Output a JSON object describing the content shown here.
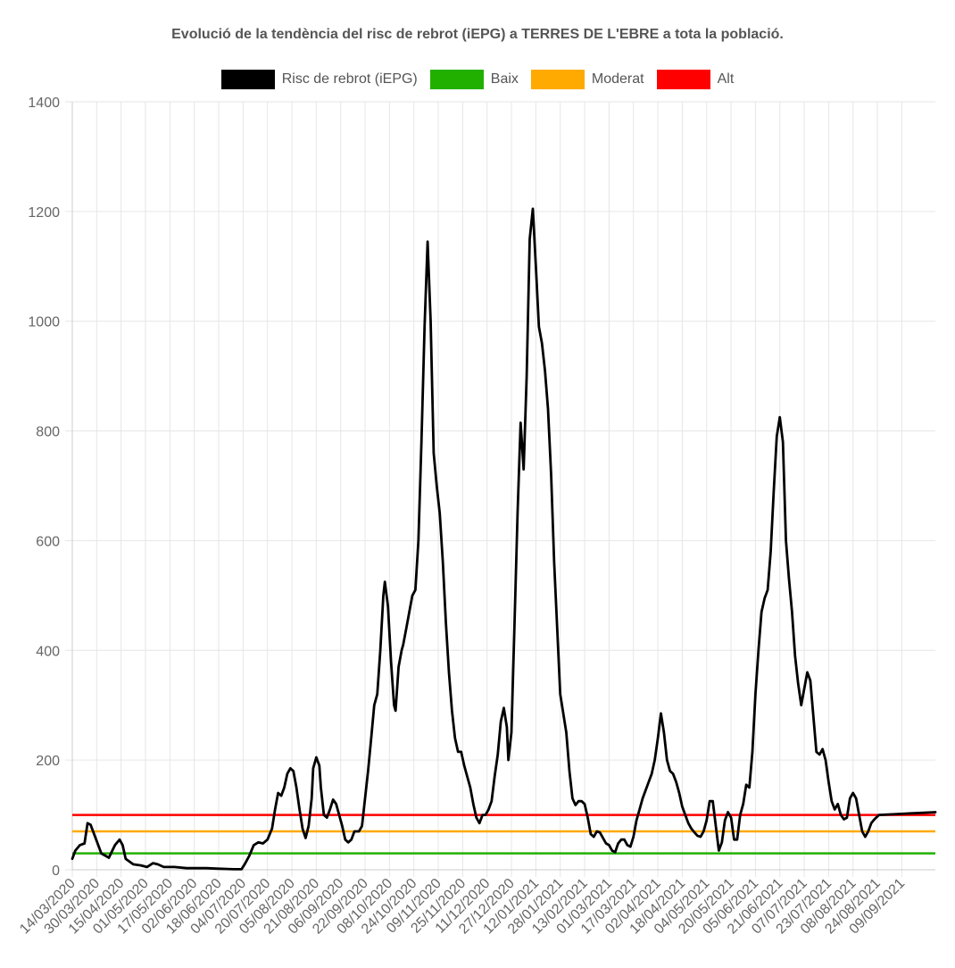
{
  "chart_data": {
    "type": "line",
    "title": "Evolució de la tendència del risc de rebrot (iEPG) a TERRES DE L'EBRE a tota la població.",
    "xlabel": "",
    "ylabel": "",
    "ylim": [
      0,
      1400
    ],
    "yticks": [
      0,
      200,
      400,
      600,
      800,
      1000,
      1200,
      1400
    ],
    "x_start": "14/03/2020",
    "x_end": "01/10/2021",
    "xtick_labels": [
      "14/03/2020",
      "30/03/2020",
      "15/04/2020",
      "01/05/2020",
      "17/05/2020",
      "02/06/2020",
      "18/06/2020",
      "04/07/2020",
      "20/07/2020",
      "05/08/2020",
      "21/08/2020",
      "06/09/2020",
      "22/09/2020",
      "08/10/2020",
      "24/10/2020",
      "09/11/2020",
      "25/11/2020",
      "11/12/2020",
      "27/12/2020",
      "12/01/2021",
      "28/01/2021",
      "13/02/2021",
      "01/03/2021",
      "17/03/2021",
      "02/04/2021",
      "18/04/2021",
      "04/05/2021",
      "20/05/2021",
      "05/06/2021",
      "21/06/2021",
      "07/07/2021",
      "23/07/2021",
      "08/08/2021",
      "24/08/2021",
      "09/09/2021"
    ],
    "grid": true,
    "legend_position": "top",
    "series": [
      {
        "name": "Risc de rebrot (iEPG)",
        "color": "#000000",
        "points": [
          [
            "14/03/2020",
            20
          ],
          [
            "16/03/2020",
            35
          ],
          [
            "19/03/2020",
            45
          ],
          [
            "22/03/2020",
            48
          ],
          [
            "24/03/2020",
            85
          ],
          [
            "26/03/2020",
            82
          ],
          [
            "29/03/2020",
            60
          ],
          [
            "02/04/2020",
            30
          ],
          [
            "07/04/2020",
            22
          ],
          [
            "11/04/2020",
            45
          ],
          [
            "14/04/2020",
            55
          ],
          [
            "16/04/2020",
            45
          ],
          [
            "18/04/2020",
            20
          ],
          [
            "23/04/2020",
            10
          ],
          [
            "28/04/2020",
            8
          ],
          [
            "02/05/2020",
            5
          ],
          [
            "06/05/2020",
            12
          ],
          [
            "09/05/2020",
            10
          ],
          [
            "13/05/2020",
            5
          ],
          [
            "20/05/2020",
            5
          ],
          [
            "28/05/2020",
            3
          ],
          [
            "10/06/2020",
            3
          ],
          [
            "18/06/2020",
            2
          ],
          [
            "28/06/2020",
            1
          ],
          [
            "03/07/2020",
            1
          ],
          [
            "05/07/2020",
            10
          ],
          [
            "08/07/2020",
            25
          ],
          [
            "11/07/2020",
            45
          ],
          [
            "14/07/2020",
            50
          ],
          [
            "17/07/2020",
            48
          ],
          [
            "20/07/2020",
            55
          ],
          [
            "23/07/2020",
            75
          ],
          [
            "25/07/2020",
            110
          ],
          [
            "27/07/2020",
            140
          ],
          [
            "29/07/2020",
            135
          ],
          [
            "31/07/2020",
            150
          ],
          [
            "02/08/2020",
            175
          ],
          [
            "04/08/2020",
            185
          ],
          [
            "06/08/2020",
            180
          ],
          [
            "08/08/2020",
            150
          ],
          [
            "10/08/2020",
            110
          ],
          [
            "12/08/2020",
            75
          ],
          [
            "14/08/2020",
            58
          ],
          [
            "16/08/2020",
            80
          ],
          [
            "18/08/2020",
            130
          ],
          [
            "19/08/2020",
            185
          ],
          [
            "21/08/2020",
            205
          ],
          [
            "23/08/2020",
            190
          ],
          [
            "24/08/2020",
            150
          ],
          [
            "26/08/2020",
            100
          ],
          [
            "28/08/2020",
            95
          ],
          [
            "30/08/2020",
            110
          ],
          [
            "01/09/2020",
            128
          ],
          [
            "03/09/2020",
            120
          ],
          [
            "05/09/2020",
            100
          ],
          [
            "07/09/2020",
            80
          ],
          [
            "09/09/2020",
            55
          ],
          [
            "11/09/2020",
            50
          ],
          [
            "13/09/2020",
            55
          ],
          [
            "15/09/2020",
            70
          ],
          [
            "18/09/2020",
            70
          ],
          [
            "20/09/2020",
            80
          ],
          [
            "22/09/2020",
            130
          ],
          [
            "24/09/2020",
            180
          ],
          [
            "26/09/2020",
            240
          ],
          [
            "28/09/2020",
            300
          ],
          [
            "30/09/2020",
            320
          ],
          [
            "02/10/2020",
            400
          ],
          [
            "04/10/2020",
            500
          ],
          [
            "05/10/2020",
            525
          ],
          [
            "07/10/2020",
            480
          ],
          [
            "09/10/2020",
            380
          ],
          [
            "11/10/2020",
            300
          ],
          [
            "12/10/2020",
            290
          ],
          [
            "14/10/2020",
            370
          ],
          [
            "16/10/2020",
            400
          ],
          [
            "17/10/2020",
            410
          ],
          [
            "19/10/2020",
            440
          ],
          [
            "21/10/2020",
            470
          ],
          [
            "23/10/2020",
            500
          ],
          [
            "25/10/2020",
            510
          ],
          [
            "27/10/2020",
            600
          ],
          [
            "29/10/2020",
            780
          ],
          [
            "31/10/2020",
            990
          ],
          [
            "02/11/2020",
            1145
          ],
          [
            "04/11/2020",
            1000
          ],
          [
            "06/11/2020",
            760
          ],
          [
            "08/11/2020",
            700
          ],
          [
            "10/11/2020",
            650
          ],
          [
            "12/11/2020",
            560
          ],
          [
            "14/11/2020",
            450
          ],
          [
            "16/11/2020",
            360
          ],
          [
            "18/11/2020",
            290
          ],
          [
            "20/11/2020",
            240
          ],
          [
            "22/11/2020",
            215
          ],
          [
            "24/11/2020",
            215
          ],
          [
            "26/11/2020",
            190
          ],
          [
            "28/11/2020",
            170
          ],
          [
            "30/11/2020",
            150
          ],
          [
            "02/12/2020",
            120
          ],
          [
            "04/12/2020",
            95
          ],
          [
            "06/12/2020",
            85
          ],
          [
            "08/12/2020",
            100
          ],
          [
            "10/12/2020",
            100
          ],
          [
            "12/12/2020",
            110
          ],
          [
            "14/12/2020",
            125
          ],
          [
            "16/12/2020",
            170
          ],
          [
            "18/12/2020",
            210
          ],
          [
            "20/12/2020",
            270
          ],
          [
            "22/12/2020",
            295
          ],
          [
            "24/12/2020",
            260
          ],
          [
            "25/12/2020",
            200
          ],
          [
            "27/12/2020",
            250
          ],
          [
            "29/12/2020",
            450
          ],
          [
            "31/12/2020",
            650
          ],
          [
            "02/01/2021",
            815
          ],
          [
            "04/01/2021",
            730
          ],
          [
            "06/01/2021",
            900
          ],
          [
            "08/01/2021",
            1150
          ],
          [
            "10/01/2021",
            1205
          ],
          [
            "12/01/2021",
            1100
          ],
          [
            "14/01/2021",
            990
          ],
          [
            "16/01/2021",
            960
          ],
          [
            "18/01/2021",
            910
          ],
          [
            "20/01/2021",
            840
          ],
          [
            "22/01/2021",
            720
          ],
          [
            "24/01/2021",
            560
          ],
          [
            "26/01/2021",
            440
          ],
          [
            "28/01/2021",
            320
          ],
          [
            "30/01/2021",
            285
          ],
          [
            "01/02/2021",
            250
          ],
          [
            "03/02/2021",
            180
          ],
          [
            "05/02/2021",
            130
          ],
          [
            "07/02/2021",
            118
          ],
          [
            "09/02/2021",
            125
          ],
          [
            "11/02/2021",
            125
          ],
          [
            "13/02/2021",
            120
          ],
          [
            "15/02/2021",
            95
          ],
          [
            "17/02/2021",
            65
          ],
          [
            "19/02/2021",
            60
          ],
          [
            "21/02/2021",
            70
          ],
          [
            "23/02/2021",
            68
          ],
          [
            "25/02/2021",
            58
          ],
          [
            "27/02/2021",
            48
          ],
          [
            "01/03/2021",
            45
          ],
          [
            "03/03/2021",
            35
          ],
          [
            "05/03/2021",
            32
          ],
          [
            "07/03/2021",
            48
          ],
          [
            "09/03/2021",
            55
          ],
          [
            "11/03/2021",
            55
          ],
          [
            "13/03/2021",
            45
          ],
          [
            "15/03/2021",
            42
          ],
          [
            "17/03/2021",
            60
          ],
          [
            "19/03/2021",
            90
          ],
          [
            "21/03/2021",
            110
          ],
          [
            "23/03/2021",
            130
          ],
          [
            "25/03/2021",
            145
          ],
          [
            "27/03/2021",
            160
          ],
          [
            "29/03/2021",
            175
          ],
          [
            "31/03/2021",
            200
          ],
          [
            "02/04/2021",
            240
          ],
          [
            "04/04/2021",
            285
          ],
          [
            "06/04/2021",
            250
          ],
          [
            "08/04/2021",
            200
          ],
          [
            "10/04/2021",
            180
          ],
          [
            "12/04/2021",
            175
          ],
          [
            "14/04/2021",
            160
          ],
          [
            "16/04/2021",
            140
          ],
          [
            "18/04/2021",
            115
          ],
          [
            "20/04/2021",
            100
          ],
          [
            "22/04/2021",
            85
          ],
          [
            "24/04/2021",
            75
          ],
          [
            "26/04/2021",
            68
          ],
          [
            "28/04/2021",
            62
          ],
          [
            "30/04/2021",
            60
          ],
          [
            "02/05/2021",
            70
          ],
          [
            "04/05/2021",
            90
          ],
          [
            "06/05/2021",
            125
          ],
          [
            "08/05/2021",
            125
          ],
          [
            "10/05/2021",
            80
          ],
          [
            "12/05/2021",
            35
          ],
          [
            "14/05/2021",
            50
          ],
          [
            "16/05/2021",
            90
          ],
          [
            "18/05/2021",
            105
          ],
          [
            "20/05/2021",
            95
          ],
          [
            "22/05/2021",
            55
          ],
          [
            "24/05/2021",
            55
          ],
          [
            "26/05/2021",
            100
          ],
          [
            "28/05/2021",
            120
          ],
          [
            "30/05/2021",
            155
          ],
          [
            "01/06/2021",
            150
          ],
          [
            "03/06/2021",
            215
          ],
          [
            "05/06/2021",
            320
          ],
          [
            "07/06/2021",
            400
          ],
          [
            "09/06/2021",
            470
          ],
          [
            "11/06/2021",
            495
          ],
          [
            "13/06/2021",
            510
          ],
          [
            "15/06/2021",
            580
          ],
          [
            "17/06/2021",
            690
          ],
          [
            "19/06/2021",
            790
          ],
          [
            "21/06/2021",
            825
          ],
          [
            "23/06/2021",
            780
          ],
          [
            "25/06/2021",
            600
          ],
          [
            "27/06/2021",
            530
          ],
          [
            "29/06/2021",
            470
          ],
          [
            "01/07/2021",
            390
          ],
          [
            "03/07/2021",
            340
          ],
          [
            "05/07/2021",
            300
          ],
          [
            "07/07/2021",
            330
          ],
          [
            "09/07/2021",
            360
          ],
          [
            "11/07/2021",
            345
          ],
          [
            "13/07/2021",
            280
          ],
          [
            "15/07/2021",
            215
          ],
          [
            "17/07/2021",
            210
          ],
          [
            "19/07/2021",
            220
          ],
          [
            "21/07/2021",
            200
          ],
          [
            "23/07/2021",
            160
          ],
          [
            "25/07/2021",
            125
          ],
          [
            "27/07/2021",
            110
          ],
          [
            "29/07/2021",
            120
          ],
          [
            "31/07/2021",
            100
          ],
          [
            "02/08/2021",
            92
          ],
          [
            "04/08/2021",
            95
          ],
          [
            "06/08/2021",
            130
          ],
          [
            "08/08/2021",
            140
          ],
          [
            "10/08/2021",
            130
          ],
          [
            "12/08/2021",
            100
          ],
          [
            "14/08/2021",
            70
          ],
          [
            "16/08/2021",
            60
          ],
          [
            "18/08/2021",
            70
          ],
          [
            "20/08/2021",
            85
          ],
          [
            "22/08/2021",
            92
          ],
          [
            "25/08/2021",
            100
          ],
          [
            "01/10/2021",
            105
          ]
        ]
      },
      {
        "name": "Baix",
        "color": "#22b000",
        "constant": 30
      },
      {
        "name": "Moderat",
        "color": "#ffaa00",
        "constant": 70
      },
      {
        "name": "Alt",
        "color": "#ff0000",
        "constant": 100
      }
    ]
  }
}
